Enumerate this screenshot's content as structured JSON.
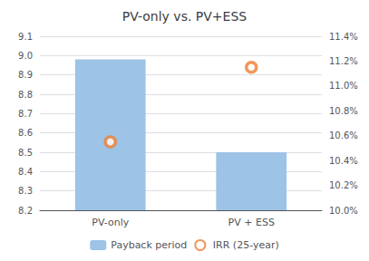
{
  "chart_data": {
    "type": "bar",
    "title": "PV-only vs. PV+ESS",
    "categories": [
      "PV-only",
      "PV + ESS"
    ],
    "series": [
      {
        "name": "Payback period",
        "type": "bar",
        "color": "#9DC3E6",
        "values": [
          8.98,
          8.5
        ]
      },
      {
        "name": "IRR (25-year)",
        "type": "scatter",
        "color": "#ED7D31",
        "marker": "circle",
        "axis": "y2",
        "values": [
          0.1055,
          0.1115
        ]
      }
    ],
    "ylim": [
      8.2,
      9.1
    ],
    "yticks": [
      8.2,
      8.3,
      8.4,
      8.5,
      8.6,
      8.7,
      8.8,
      8.9,
      {
        "value": 9.0,
        "label": "9.0"
      },
      9.1
    ],
    "y2lim": [
      0.1,
      0.114
    ],
    "y2ticks": [
      {
        "value": 0.1,
        "label": "10.0%"
      },
      {
        "value": 0.102,
        "label": "10.2%"
      },
      {
        "value": 0.104,
        "label": "10.4%"
      },
      {
        "value": 0.106,
        "label": "10.6%"
      },
      {
        "value": 0.108,
        "label": "10.8%"
      },
      {
        "value": 0.11,
        "label": "11.0%"
      },
      {
        "value": 0.112,
        "label": "11.2%"
      },
      {
        "value": 0.114,
        "label": "11.4%"
      }
    ],
    "grid": true,
    "legend": "bottom"
  }
}
